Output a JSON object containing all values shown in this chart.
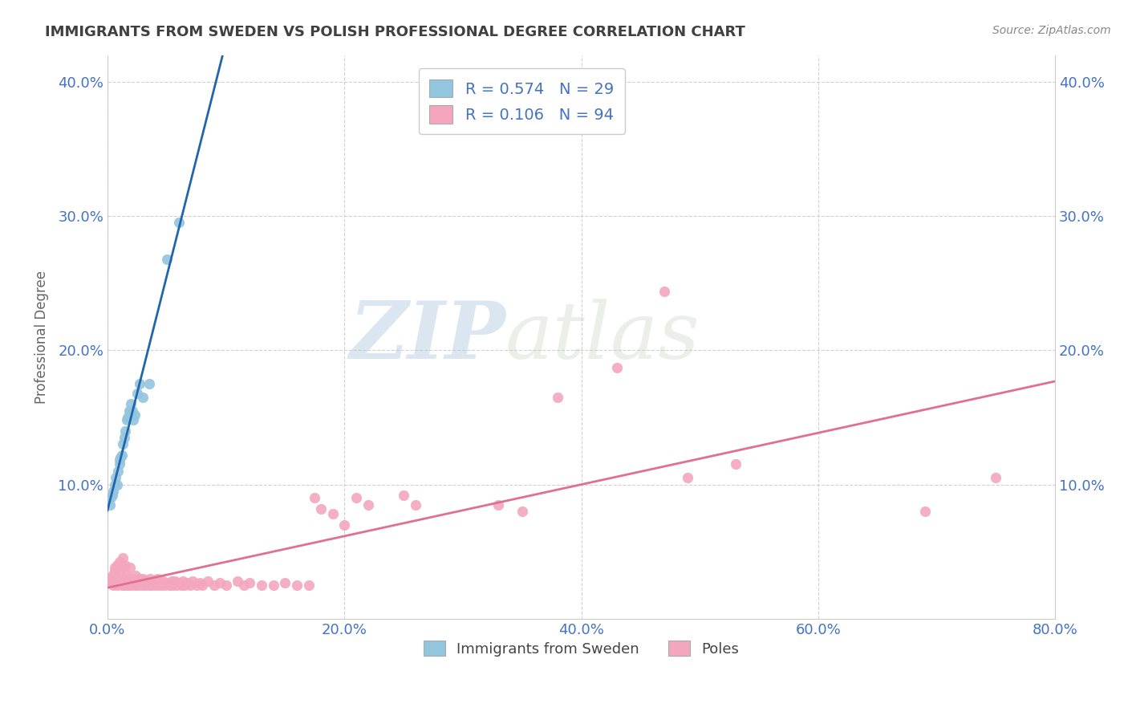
{
  "title": "IMMIGRANTS FROM SWEDEN VS POLISH PROFESSIONAL DEGREE CORRELATION CHART",
  "source_text": "Source: ZipAtlas.com",
  "xlabel": "",
  "ylabel": "Professional Degree",
  "watermark_zip": "ZIP",
  "watermark_atlas": "atlas",
  "xlim": [
    0.0,
    0.8
  ],
  "ylim": [
    0.0,
    0.42
  ],
  "xtick_labels": [
    "0.0%",
    "20.0%",
    "40.0%",
    "60.0%",
    "80.0%"
  ],
  "xtick_values": [
    0.0,
    0.2,
    0.4,
    0.6,
    0.8
  ],
  "ytick_labels": [
    "10.0%",
    "20.0%",
    "30.0%",
    "40.0%"
  ],
  "ytick_values": [
    0.1,
    0.2,
    0.3,
    0.4
  ],
  "sweden_color": "#92c5de",
  "poles_color": "#f4a6be",
  "sweden_line_color": "#2166ac",
  "poles_line_color": "#e07090",
  "sweden_R": 0.574,
  "sweden_N": 29,
  "poles_R": 0.106,
  "poles_N": 94,
  "legend_label_sweden": "Immigrants from Sweden",
  "legend_label_poles": "Poles",
  "background_color": "#ffffff",
  "grid_color": "#cccccc",
  "title_color": "#404040",
  "blue_text_color": "#4472c4",
  "sweden_scatter_x": [
    0.002,
    0.003,
    0.004,
    0.005,
    0.006,
    0.007,
    0.008,
    0.009,
    0.01,
    0.01,
    0.011,
    0.012,
    0.013,
    0.014,
    0.015,
    0.016,
    0.017,
    0.018,
    0.019,
    0.02,
    0.021,
    0.022,
    0.023,
    0.025,
    0.027,
    0.03,
    0.035,
    0.05,
    0.06
  ],
  "sweden_scatter_y": [
    0.085,
    0.09,
    0.092,
    0.095,
    0.1,
    0.105,
    0.1,
    0.11,
    0.115,
    0.118,
    0.12,
    0.122,
    0.13,
    0.135,
    0.14,
    0.148,
    0.15,
    0.155,
    0.155,
    0.16,
    0.155,
    0.148,
    0.152,
    0.168,
    0.175,
    0.165,
    0.175,
    0.268,
    0.295
  ],
  "poles_scatter_x": [
    0.002,
    0.003,
    0.004,
    0.005,
    0.006,
    0.006,
    0.007,
    0.008,
    0.008,
    0.009,
    0.01,
    0.01,
    0.011,
    0.012,
    0.012,
    0.013,
    0.013,
    0.014,
    0.015,
    0.015,
    0.016,
    0.017,
    0.018,
    0.019,
    0.02,
    0.021,
    0.022,
    0.023,
    0.024,
    0.025,
    0.026,
    0.027,
    0.028,
    0.029,
    0.03,
    0.031,
    0.032,
    0.033,
    0.035,
    0.036,
    0.037,
    0.038,
    0.04,
    0.041,
    0.042,
    0.044,
    0.045,
    0.047,
    0.048,
    0.05,
    0.052,
    0.054,
    0.055,
    0.057,
    0.058,
    0.06,
    0.062,
    0.064,
    0.065,
    0.067,
    0.07,
    0.072,
    0.075,
    0.078,
    0.08,
    0.085,
    0.09,
    0.095,
    0.1,
    0.11,
    0.115,
    0.12,
    0.13,
    0.14,
    0.15,
    0.16,
    0.17,
    0.175,
    0.18,
    0.19,
    0.2,
    0.21,
    0.22,
    0.25,
    0.26,
    0.33,
    0.35,
    0.38,
    0.43,
    0.47,
    0.49,
    0.53,
    0.69,
    0.75
  ],
  "poles_scatter_y": [
    0.03,
    0.028,
    0.032,
    0.025,
    0.035,
    0.038,
    0.03,
    0.025,
    0.04,
    0.03,
    0.028,
    0.042,
    0.035,
    0.025,
    0.038,
    0.03,
    0.045,
    0.025,
    0.028,
    0.04,
    0.032,
    0.025,
    0.03,
    0.038,
    0.025,
    0.03,
    0.028,
    0.025,
    0.032,
    0.027,
    0.025,
    0.03,
    0.028,
    0.025,
    0.03,
    0.027,
    0.025,
    0.028,
    0.025,
    0.03,
    0.027,
    0.025,
    0.028,
    0.025,
    0.03,
    0.027,
    0.025,
    0.028,
    0.025,
    0.027,
    0.025,
    0.028,
    0.025,
    0.028,
    0.025,
    0.027,
    0.025,
    0.028,
    0.025,
    0.027,
    0.025,
    0.028,
    0.025,
    0.027,
    0.025,
    0.028,
    0.025,
    0.027,
    0.025,
    0.028,
    0.025,
    0.027,
    0.025,
    0.025,
    0.027,
    0.025,
    0.025,
    0.09,
    0.082,
    0.078,
    0.07,
    0.09,
    0.085,
    0.092,
    0.085,
    0.085,
    0.08,
    0.165,
    0.187,
    0.244,
    0.105,
    0.115,
    0.08,
    0.105
  ]
}
